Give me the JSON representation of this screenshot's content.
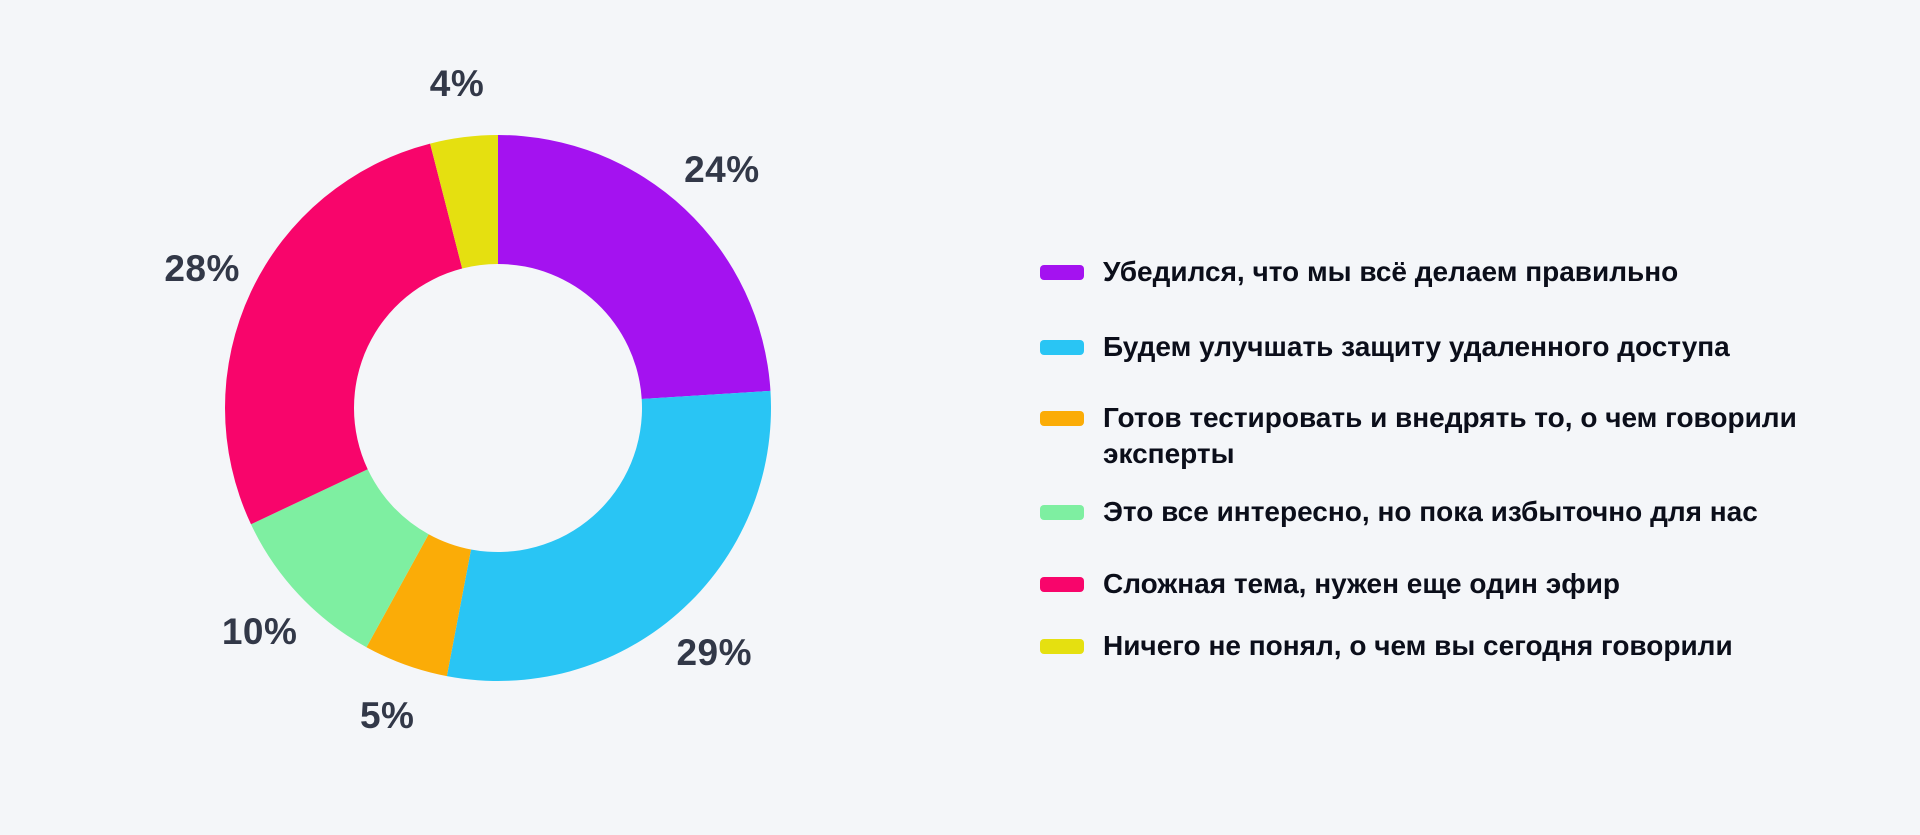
{
  "background_color": "#F4F6F9",
  "chart_data": {
    "type": "pie",
    "subtype": "donut",
    "title": "",
    "start_angle_deg": 0,
    "direction": "clockwise",
    "legend_position": "right",
    "grid": false,
    "percent_label_color": "#323848",
    "series": [
      {
        "name": "Убедился, что мы всё делаем правильно",
        "value": 24,
        "display_label": "24%",
        "color": "#A412F0"
      },
      {
        "name": "Будем улучшать защиту удаленного доступа",
        "value": 29,
        "display_label": "29%",
        "color": "#29C5F4"
      },
      {
        "name": "Готов тестировать и внедрять то, о чем говорили эксперты",
        "value": 5,
        "display_label": "5%",
        "color": "#FBAC07"
      },
      {
        "name": "Это все интересно, но пока избыточно для нас",
        "value": 10,
        "display_label": "10%",
        "color": "#7EEFA1"
      },
      {
        "name": "Сложная тема, нужен еще один эфир",
        "value": 28,
        "display_label": "28%",
        "color": "#F8056B"
      },
      {
        "name": "Ничего не понял, о чем вы сегодня говорили",
        "value": 4,
        "display_label": "4%",
        "color": "#E5E010"
      }
    ]
  }
}
